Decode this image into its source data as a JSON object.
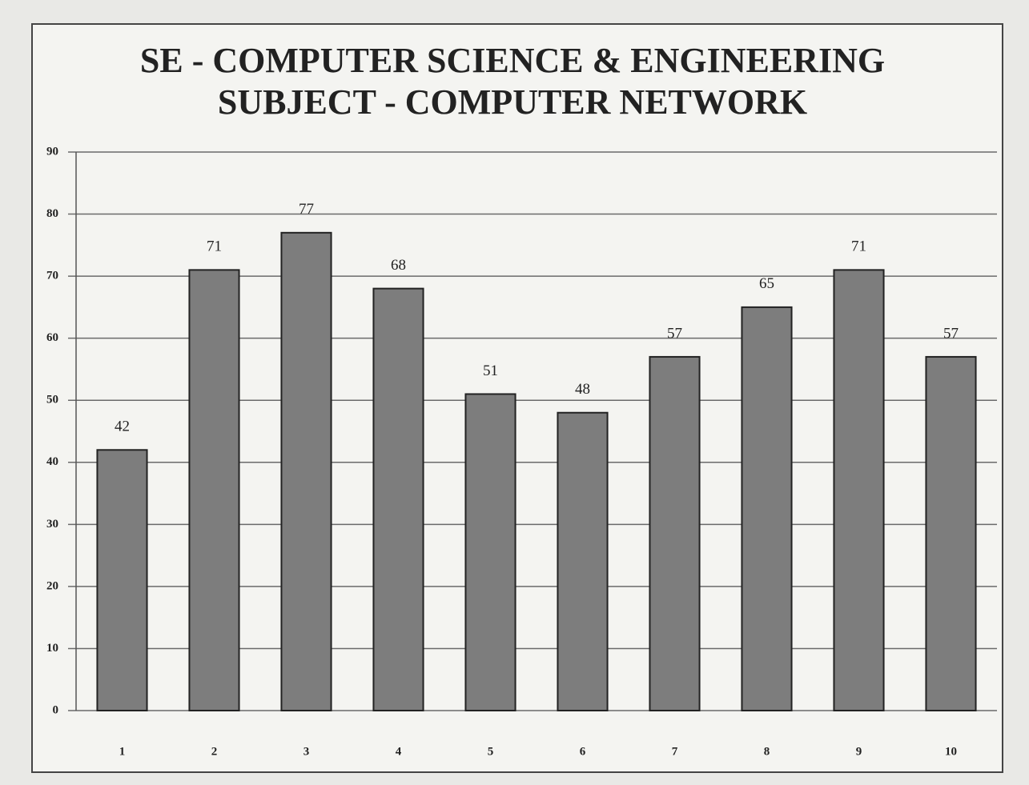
{
  "chart_data": {
    "type": "bar",
    "title": "SE - COMPUTER SCIENCE & ENGINEERING",
    "subtitle": "SUBJECT - COMPUTER NETWORK",
    "categories": [
      "1",
      "2",
      "3",
      "4",
      "5",
      "6",
      "7",
      "8",
      "9",
      "10"
    ],
    "values": [
      42,
      71,
      77,
      68,
      51,
      48,
      57,
      65,
      71,
      57
    ],
    "color": "#7d7d7d",
    "ylim": [
      0,
      90
    ],
    "yticks": [
      0,
      10,
      20,
      30,
      40,
      50,
      60,
      70,
      80,
      90
    ],
    "grid": true
  }
}
